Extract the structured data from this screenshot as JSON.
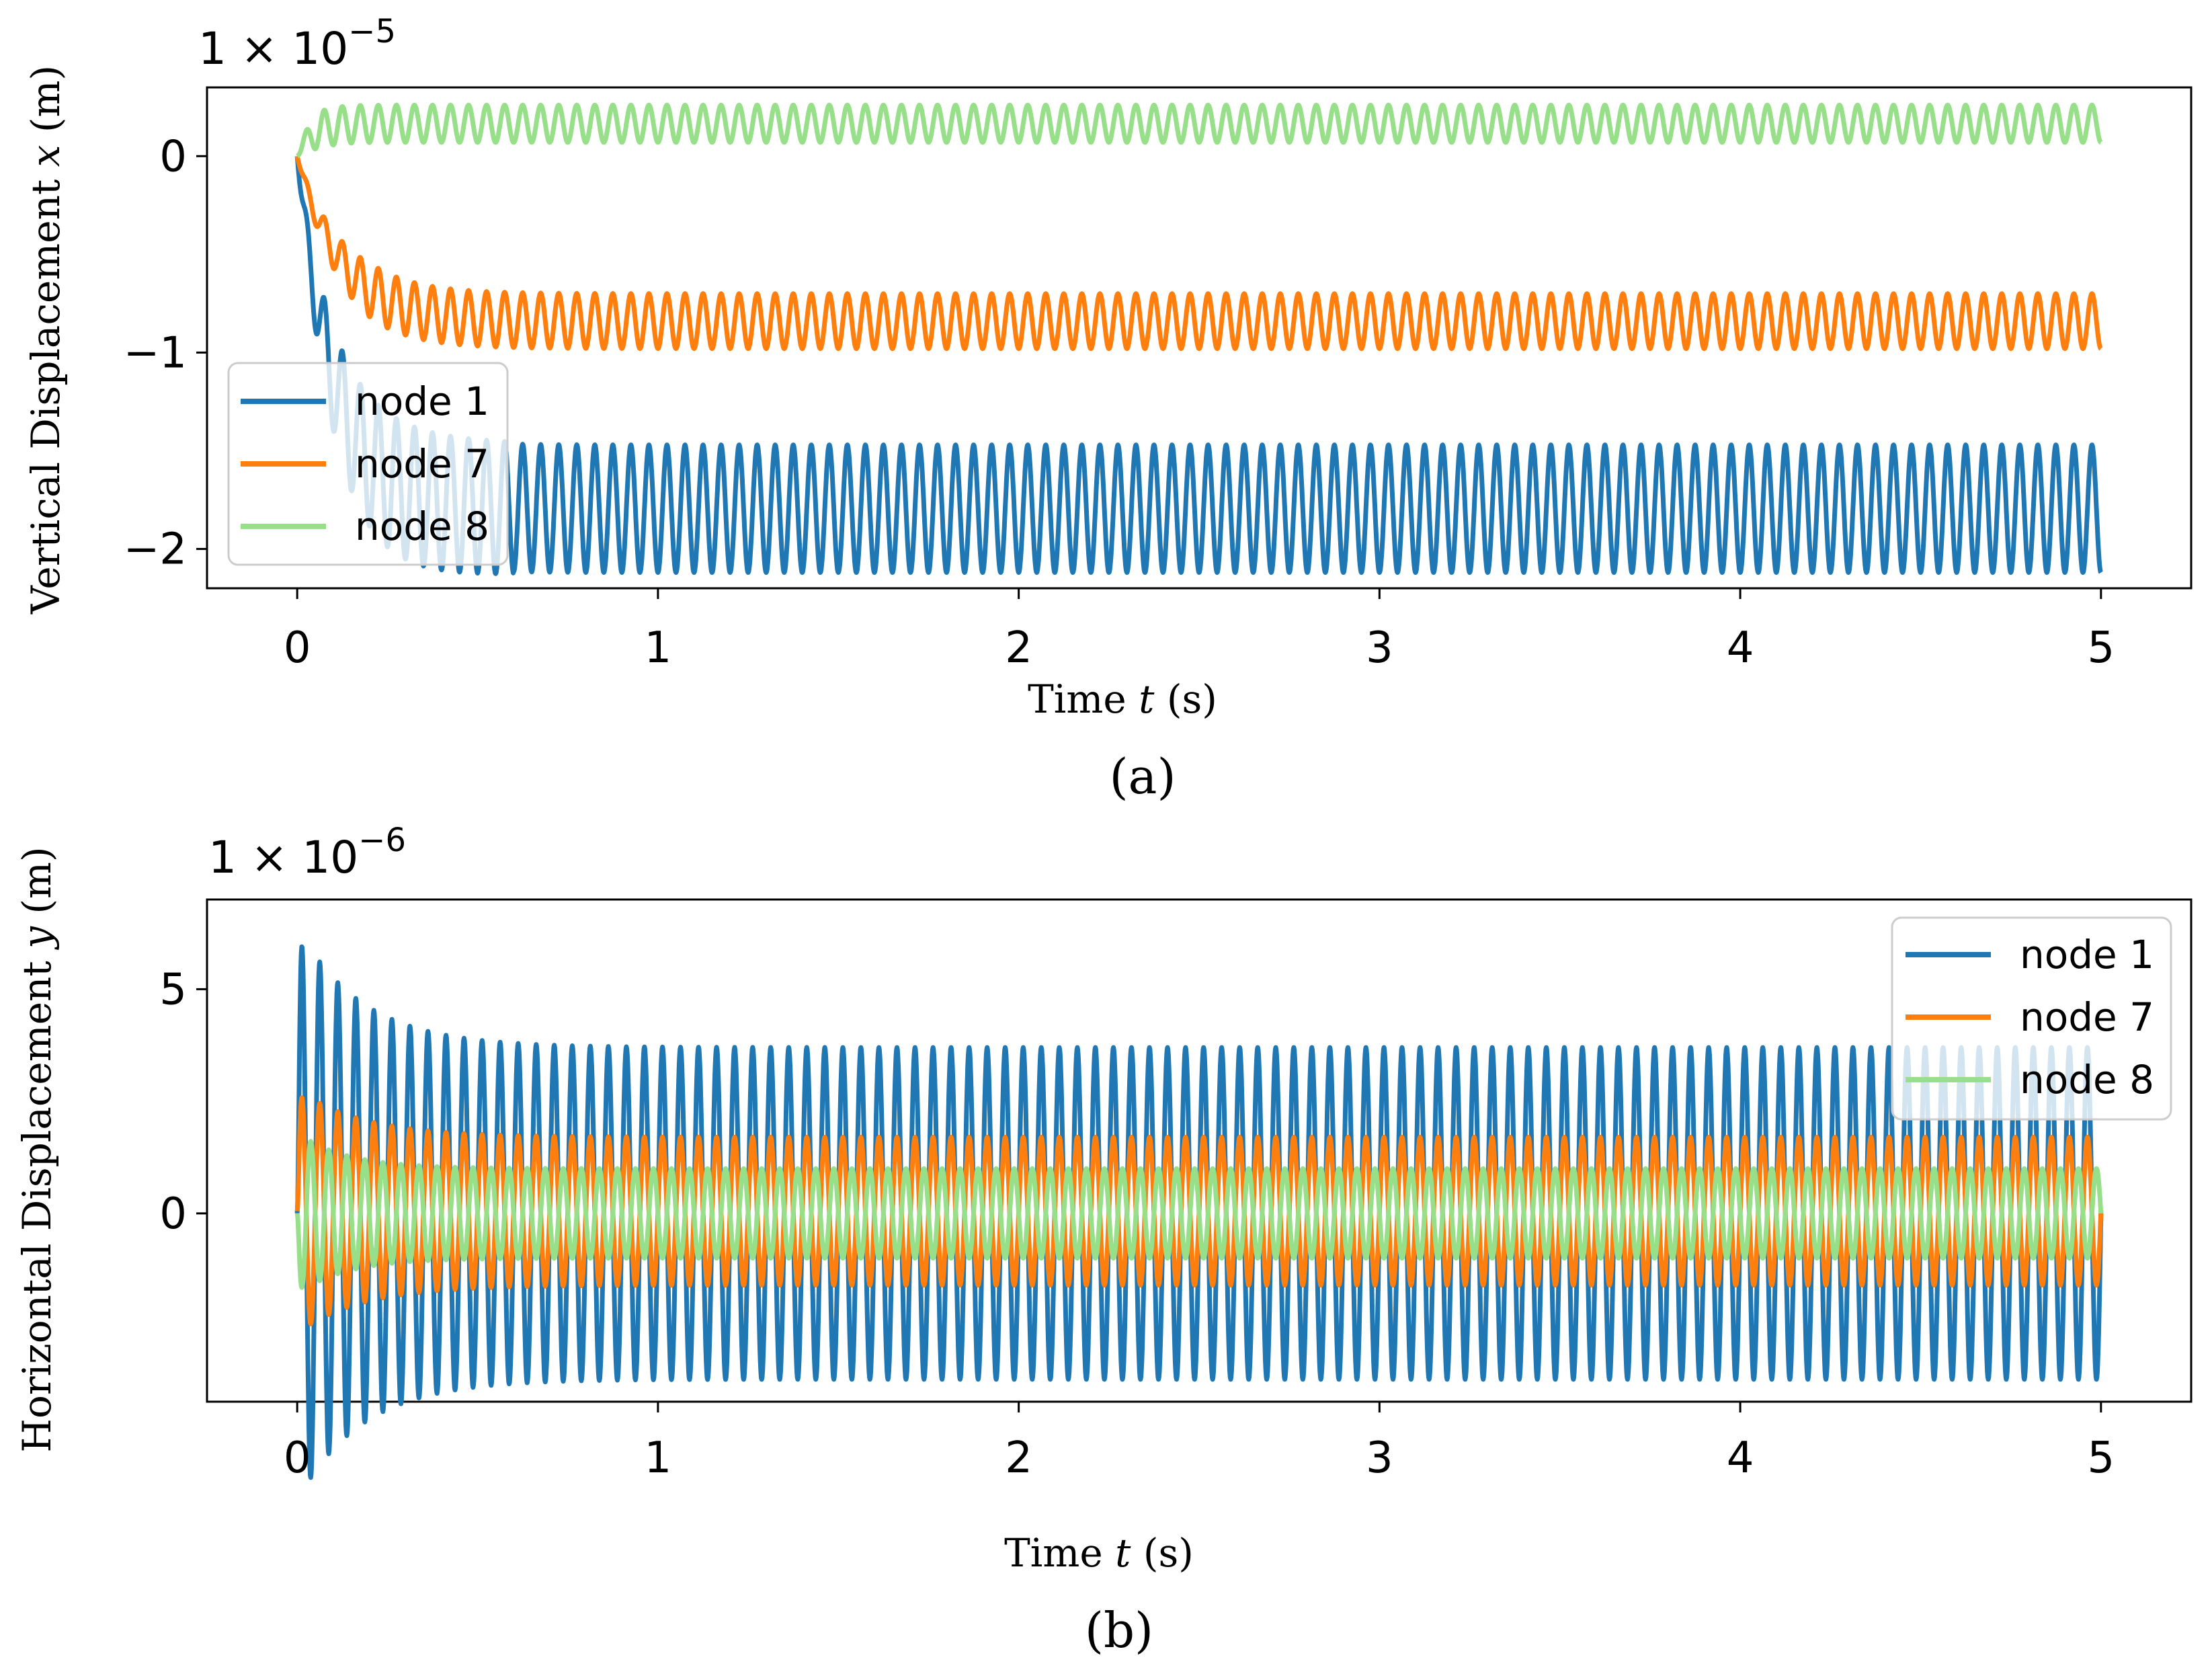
{
  "chart_data": [
    {
      "type": "line",
      "panel": "(a)",
      "caption": "(a)",
      "multiplier": "1 × 10",
      "multiplier_exponent": "−5",
      "xlabel": "Time",
      "xlabel_var": "t",
      "xlabel_unit": "(s)",
      "ylabel": "Vertical Displacement",
      "ylabel_var": "x",
      "ylabel_unit": "(m)",
      "xlim": [
        -0.25,
        5.25
      ],
      "ylim": [
        -2.2,
        0.35
      ],
      "xticks": [
        0,
        1,
        2,
        3,
        4,
        5
      ],
      "yticks": [
        0,
        -1,
        -2
      ],
      "ytick_labels": [
        "0",
        "−1",
        "−2"
      ],
      "legend_position": "lower-left",
      "series": [
        {
          "name": "node 1",
          "color": "#1f77b4",
          "steady_min": -2.12,
          "steady_max": -1.47,
          "initial": 0.0,
          "cycles": 100,
          "settle_time": 0.1
        },
        {
          "name": "node 7",
          "color": "#ff7f0e",
          "steady_min": -0.98,
          "steady_max": -0.7,
          "initial": 0.0,
          "cycles": 100,
          "settle_time": 0.12
        },
        {
          "name": "node 8",
          "color": "#98df8a",
          "steady_min": 0.07,
          "steady_max": 0.26,
          "initial": 0.0,
          "cycles": 100,
          "settle_time": 0.04
        }
      ],
      "x_start": 0,
      "x_end": 5
    },
    {
      "type": "line",
      "panel": "(b)",
      "caption": "(b)",
      "multiplier": "1 × 10",
      "multiplier_exponent": "−6",
      "xlabel": "Time",
      "xlabel_var": "t",
      "xlabel_unit": "(s)",
      "ylabel": "Horizontal Displacement",
      "ylabel_var": "y",
      "ylabel_unit": "(m)",
      "xlim": [
        -0.25,
        5.25
      ],
      "ylim": [
        -4.2,
        7.0
      ],
      "xticks": [
        0,
        1,
        2,
        3,
        4,
        5
      ],
      "yticks": [
        5,
        0
      ],
      "ytick_labels": [
        "5",
        "0"
      ],
      "legend_position": "top-right",
      "series": [
        {
          "name": "node 1",
          "color": "#1f77b4",
          "steady_min": -3.7,
          "steady_max": 3.7,
          "peak": 6.4,
          "initial": 0.0,
          "cycles": 100,
          "settle_time": 0.4
        },
        {
          "name": "node 7",
          "color": "#ff7f0e",
          "steady_min": -1.6,
          "steady_max": 1.7,
          "peak": 2.8,
          "initial": 0.0,
          "cycles": 100,
          "settle_time": 0.4
        },
        {
          "name": "node 8",
          "color": "#98df8a",
          "steady_min": -1.0,
          "steady_max": 1.0,
          "peak": -1.8,
          "initial": 0.0,
          "cycles": 100,
          "settle_time": 0.3
        }
      ],
      "x_start": 0,
      "x_end": 5
    }
  ]
}
